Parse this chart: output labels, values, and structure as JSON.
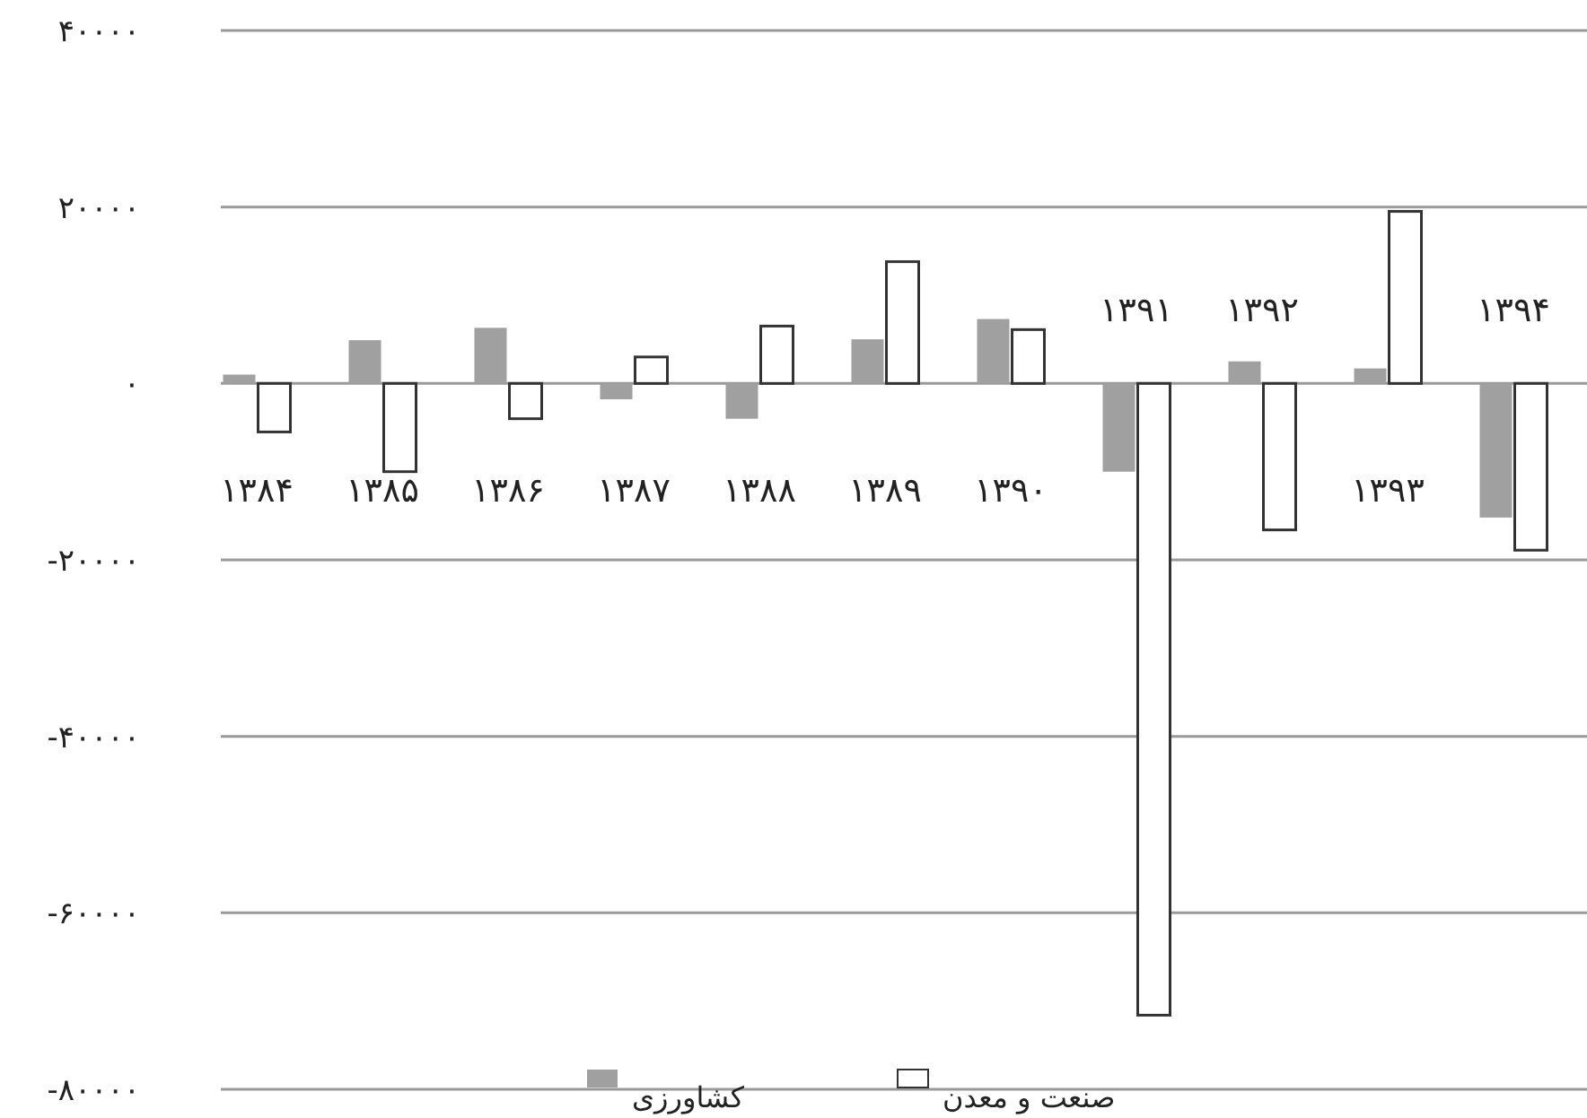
{
  "chart_data": {
    "type": "bar",
    "categories": [
      "۱۳۸۴",
      "۱۳۸۵",
      "۱۳۸۶",
      "۱۳۸۷",
      "۱۳۸۸",
      "۱۳۸۹",
      "۱۳۹۰",
      "۱۳۹۱",
      "۱۳۹۲",
      "۱۳۹۳",
      "۱۳۹۴"
    ],
    "series": [
      {
        "name": "کشاورزی",
        "color": "#a0a0a0",
        "values": [
          1000,
          4900,
          6300,
          -1800,
          -4000,
          5000,
          7300,
          -10000,
          2500,
          1700,
          -15200
        ]
      },
      {
        "name": "صنعت و معدن",
        "color": "#ffffff",
        "values": [
          -5500,
          -10000,
          -4000,
          3000,
          6500,
          13800,
          6100,
          -71600,
          -16600,
          19500,
          -18900
        ]
      }
    ],
    "ylim": [
      -80000,
      40000
    ],
    "yticks": [
      {
        "value": 40000,
        "label": "۴۰۰۰۰"
      },
      {
        "value": 20000,
        "label": "۲۰۰۰۰"
      },
      {
        "value": 0,
        "label": "۰"
      },
      {
        "value": -20000,
        "label": "-۲۰۰۰۰"
      },
      {
        "value": -40000,
        "label": "-۴۰۰۰۰"
      },
      {
        "value": -60000,
        "label": "-۶۰۰۰۰"
      },
      {
        "value": -80000,
        "label": "-۸۰۰۰۰"
      }
    ],
    "grid": "y",
    "legend": "bottom"
  }
}
